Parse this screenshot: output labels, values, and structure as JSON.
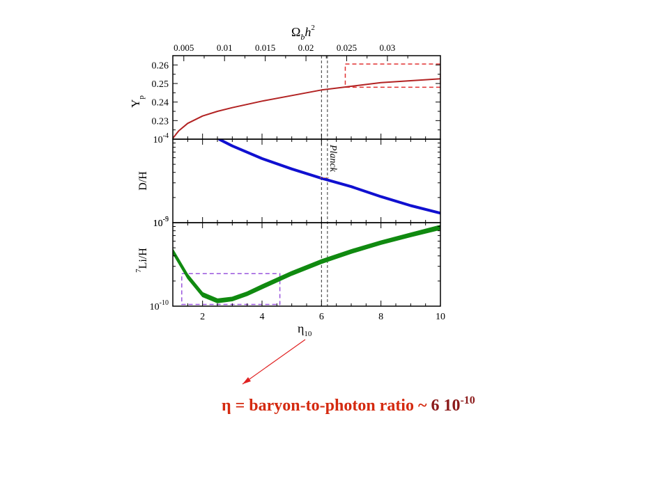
{
  "chart_data": [
    {
      "panel": "Yp",
      "type": "line",
      "ylabel": "Y",
      "ylabel_sub": "p",
      "y_ticks": [
        "0.23",
        "0.24",
        "0.25",
        "0.26"
      ],
      "ylim": [
        0.22,
        0.265
      ],
      "top_axis_label": "Ω",
      "top_axis_label_sub": "b",
      "top_axis_label_tail": "h",
      "top_axis_label_sup": "2",
      "top_axis_ticks": [
        "0.005",
        "0.01",
        "0.015",
        "0.02",
        "0.025",
        "0.03"
      ],
      "top_axis_tick_values": [
        0.005,
        0.01,
        0.015,
        0.02,
        0.025,
        0.03
      ],
      "series": [
        {
          "color": "#b22222",
          "x": [
            1.0,
            1.2,
            1.5,
            2.0,
            2.5,
            3.0,
            4.0,
            5.0,
            6.0,
            7.0,
            8.0,
            9.0,
            10.0
          ],
          "y": [
            0.2205,
            0.2245,
            0.2285,
            0.2325,
            0.235,
            0.237,
            0.2405,
            0.2435,
            0.2465,
            0.2485,
            0.2505,
            0.2515,
            0.2525
          ]
        }
      ],
      "observation_box": {
        "color": "#e03030",
        "x": [
          6.8,
          10.0
        ],
        "y": [
          0.248,
          0.2605
        ]
      }
    },
    {
      "panel": "D/H",
      "type": "line",
      "ylabel": "D/H",
      "scale": "log",
      "y_ticks": [
        "10",
        "10"
      ],
      "y_tick_exponents": [
        "-5",
        "-4"
      ],
      "ylim": [
        1e-05,
        0.0001
      ],
      "annotation": "Planck",
      "series": [
        {
          "color": "#1010d0",
          "x": [
            2.55,
            3.0,
            4.0,
            5.0,
            6.0,
            7.0,
            8.0,
            9.0,
            10.0
          ],
          "y": [
            0.0001,
            8.3e-05,
            5.85e-05,
            4.4e-05,
            3.4e-05,
            2.7e-05,
            2.05e-05,
            1.6e-05,
            1.3e-05
          ]
        }
      ]
    },
    {
      "panel": "7Li/H",
      "type": "area",
      "ylabel": "Li/H",
      "ylabel_sup": "7",
      "scale": "log",
      "y_ticks": [
        "10",
        "10"
      ],
      "y_tick_exponents": [
        "-10",
        "-9"
      ],
      "ylim": [
        1e-10,
        1e-09
      ],
      "series": [
        {
          "color": "#108a10",
          "x": [
            1.0,
            1.5,
            2.0,
            2.5,
            3.0,
            3.5,
            4.0,
            5.0,
            6.0,
            7.0,
            8.0,
            9.0,
            10.0
          ],
          "y_low": [
            4.3e-10,
            2.15e-10,
            1.3e-10,
            1.1e-10,
            1.16e-10,
            1.34e-10,
            1.62e-10,
            2.35e-10,
            3.25e-10,
            4.3e-10,
            5.5e-10,
            6.8e-10,
            8.3e-10
          ],
          "y_high": [
            4.8e-10,
            2.4e-10,
            1.45e-10,
            1.22e-10,
            1.28e-10,
            1.48e-10,
            1.8e-10,
            2.6e-10,
            3.6e-10,
            4.75e-10,
            6.05e-10,
            7.5e-10,
            9.3e-10
          ]
        }
      ],
      "observation_box": {
        "color": "#9955dd",
        "x": [
          1.3,
          4.6
        ],
        "y": [
          1.05e-10,
          2.45e-10
        ]
      }
    }
  ],
  "shared_x": {
    "label": "η",
    "label_sub": "10",
    "ticks": [
      "2",
      "4",
      "6",
      "8",
      "10"
    ],
    "tick_values": [
      2,
      4,
      6,
      8,
      10
    ],
    "xlim": [
      1,
      10
    ],
    "planck_band": [
      6.0,
      6.2
    ]
  },
  "caption": {
    "prefix": "η = baryon-to-photon ratio ~ ",
    "value": "6 10",
    "exponent": "-10",
    "color": "#d42a10",
    "value_color": "#8b1a1a",
    "arrow_color": "#e02020"
  }
}
